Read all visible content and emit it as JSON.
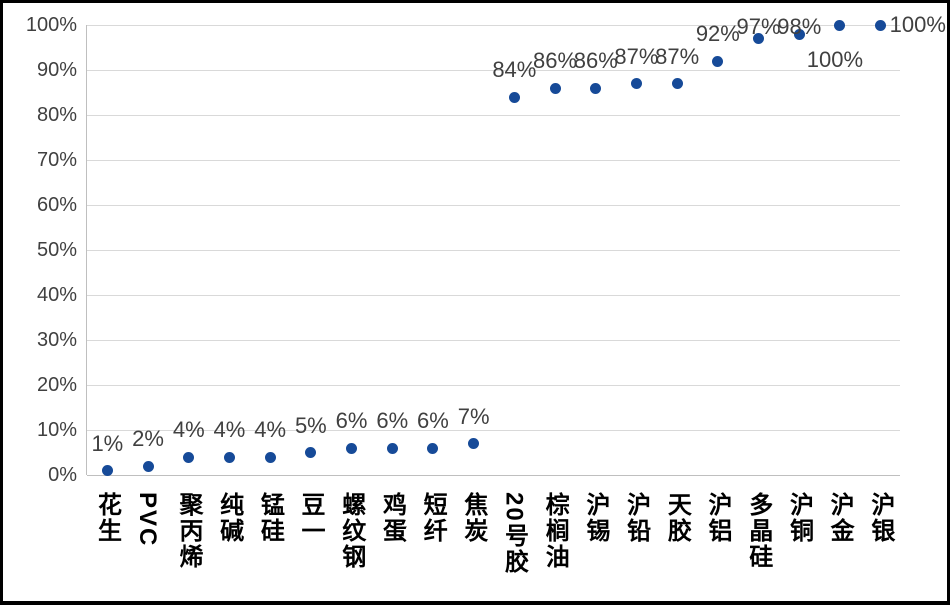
{
  "chart_data": {
    "type": "scatter",
    "title": "",
    "legend": "none",
    "grid": true,
    "categories": [
      "花生",
      "PVC",
      "聚丙烯",
      "纯碱",
      "锰硅",
      "豆一",
      "螺纹钢",
      "鸡蛋",
      "短纤",
      "焦炭",
      "20号胶",
      "棕榈油",
      "沪锡",
      "沪铅",
      "天胶",
      "沪铝",
      "多晶硅",
      "沪铜",
      "沪金",
      "沪银"
    ],
    "values": [
      1,
      2,
      4,
      4,
      4,
      5,
      6,
      6,
      6,
      7,
      84,
      86,
      86,
      87,
      87,
      92,
      97,
      98,
      100,
      100
    ],
    "data_labels": [
      "1%",
      "2%",
      "4%",
      "4%",
      "4%",
      "5%",
      "6%",
      "6%",
      "6%",
      "7%",
      "84%",
      "86%",
      "86%",
      "87%",
      "87%",
      "92%",
      "97%",
      "98%",
      "100%",
      "100%"
    ],
    "label_placements": [
      "above",
      "above",
      "above",
      "above",
      "above",
      "above",
      "above",
      "above",
      "above",
      "above",
      "above",
      "above",
      "above",
      "above",
      "above",
      "above",
      "above",
      "above",
      "below",
      "right"
    ],
    "y_ticks": [
      "0%",
      "10%",
      "20%",
      "30%",
      "40%",
      "50%",
      "60%",
      "70%",
      "80%",
      "90%",
      "100%"
    ],
    "y_tick_values": [
      0,
      10,
      20,
      30,
      40,
      50,
      60,
      70,
      80,
      90,
      100
    ],
    "ylim": [
      0,
      100
    ],
    "colors": {
      "marker": "#164A98",
      "gridline": "#D9D9D9",
      "axis_line": "#BFBFBF",
      "value_label_text": "#404040",
      "category_label_text": "#000000",
      "frame_border": "#000000",
      "background": "#FFFFFF"
    }
  }
}
